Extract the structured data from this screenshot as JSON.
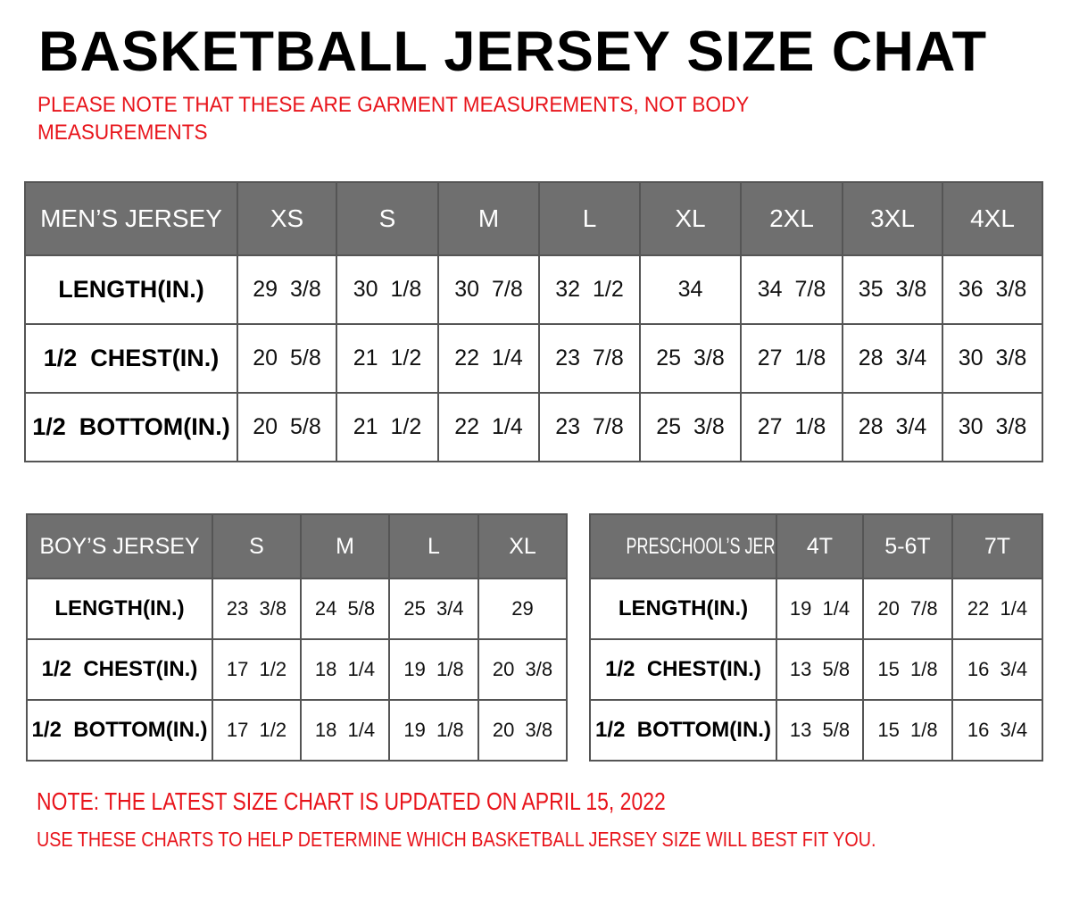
{
  "title": "BASKETBALL JERSEY SIZE CHAT",
  "note": "PLEASE NOTE THAT THESE ARE GARMENT MEASUREMENTS, NOT BODY MEASUREMENTS",
  "colors": {
    "header_bg": "#6f6f6f",
    "note_red": "#e8141b"
  },
  "mens": {
    "header": [
      "MEN’S JERSEY",
      "XS",
      "S",
      "M",
      "L",
      "XL",
      "2XL",
      "3XL",
      "4XL"
    ],
    "rows": [
      [
        "LENGTH(IN.)",
        "29  3/8",
        "30  1/8",
        "30  7/8",
        "32  1/2",
        "34",
        "34  7/8",
        "35  3/8",
        "36  3/8"
      ],
      [
        "1/2  CHEST(IN.)",
        "20  5/8",
        "21  1/2",
        "22  1/4",
        "23  7/8",
        "25  3/8",
        "27  1/8",
        "28  3/4",
        "30  3/8"
      ],
      [
        "1/2  BOTTOM(IN.)",
        "20  5/8",
        "21  1/2",
        "22  1/4",
        "23  7/8",
        "25  3/8",
        "27  1/8",
        "28  3/4",
        "30  3/8"
      ]
    ]
  },
  "boys": {
    "header": [
      "BOY’S JERSEY",
      "S",
      "M",
      "L",
      "XL"
    ],
    "rows": [
      [
        "LENGTH(IN.)",
        "23  3/8",
        "24  5/8",
        "25  3/4",
        "29"
      ],
      [
        "1/2  CHEST(IN.)",
        "17  1/2",
        "18  1/4",
        "19  1/8",
        "20  3/8"
      ],
      [
        "1/2  BOTTOM(IN.)",
        "17  1/2",
        "18  1/4",
        "19  1/8",
        "20  3/8"
      ]
    ]
  },
  "preschool": {
    "header": [
      "PRESCHOOL’S JERSEY",
      "4T",
      "5-6T",
      "7T"
    ],
    "rows": [
      [
        "LENGTH(IN.)",
        "19  1/4",
        "20  7/8",
        "22  1/4"
      ],
      [
        "1/2  CHEST(IN.)",
        "13  5/8",
        "15  1/8",
        "16  3/4"
      ],
      [
        "1/2  BOTTOM(IN.)",
        "13  5/8",
        "15  1/8",
        "16  3/4"
      ]
    ]
  },
  "footer": {
    "line1": "NOTE: THE LATEST SIZE CHART IS UPDATED ON APRIL 15, 2022",
    "line2": "USE THESE CHARTS TO HELP DETERMINE WHICH  BASKETBALL JERSEY  SIZE WILL BEST FIT YOU."
  }
}
